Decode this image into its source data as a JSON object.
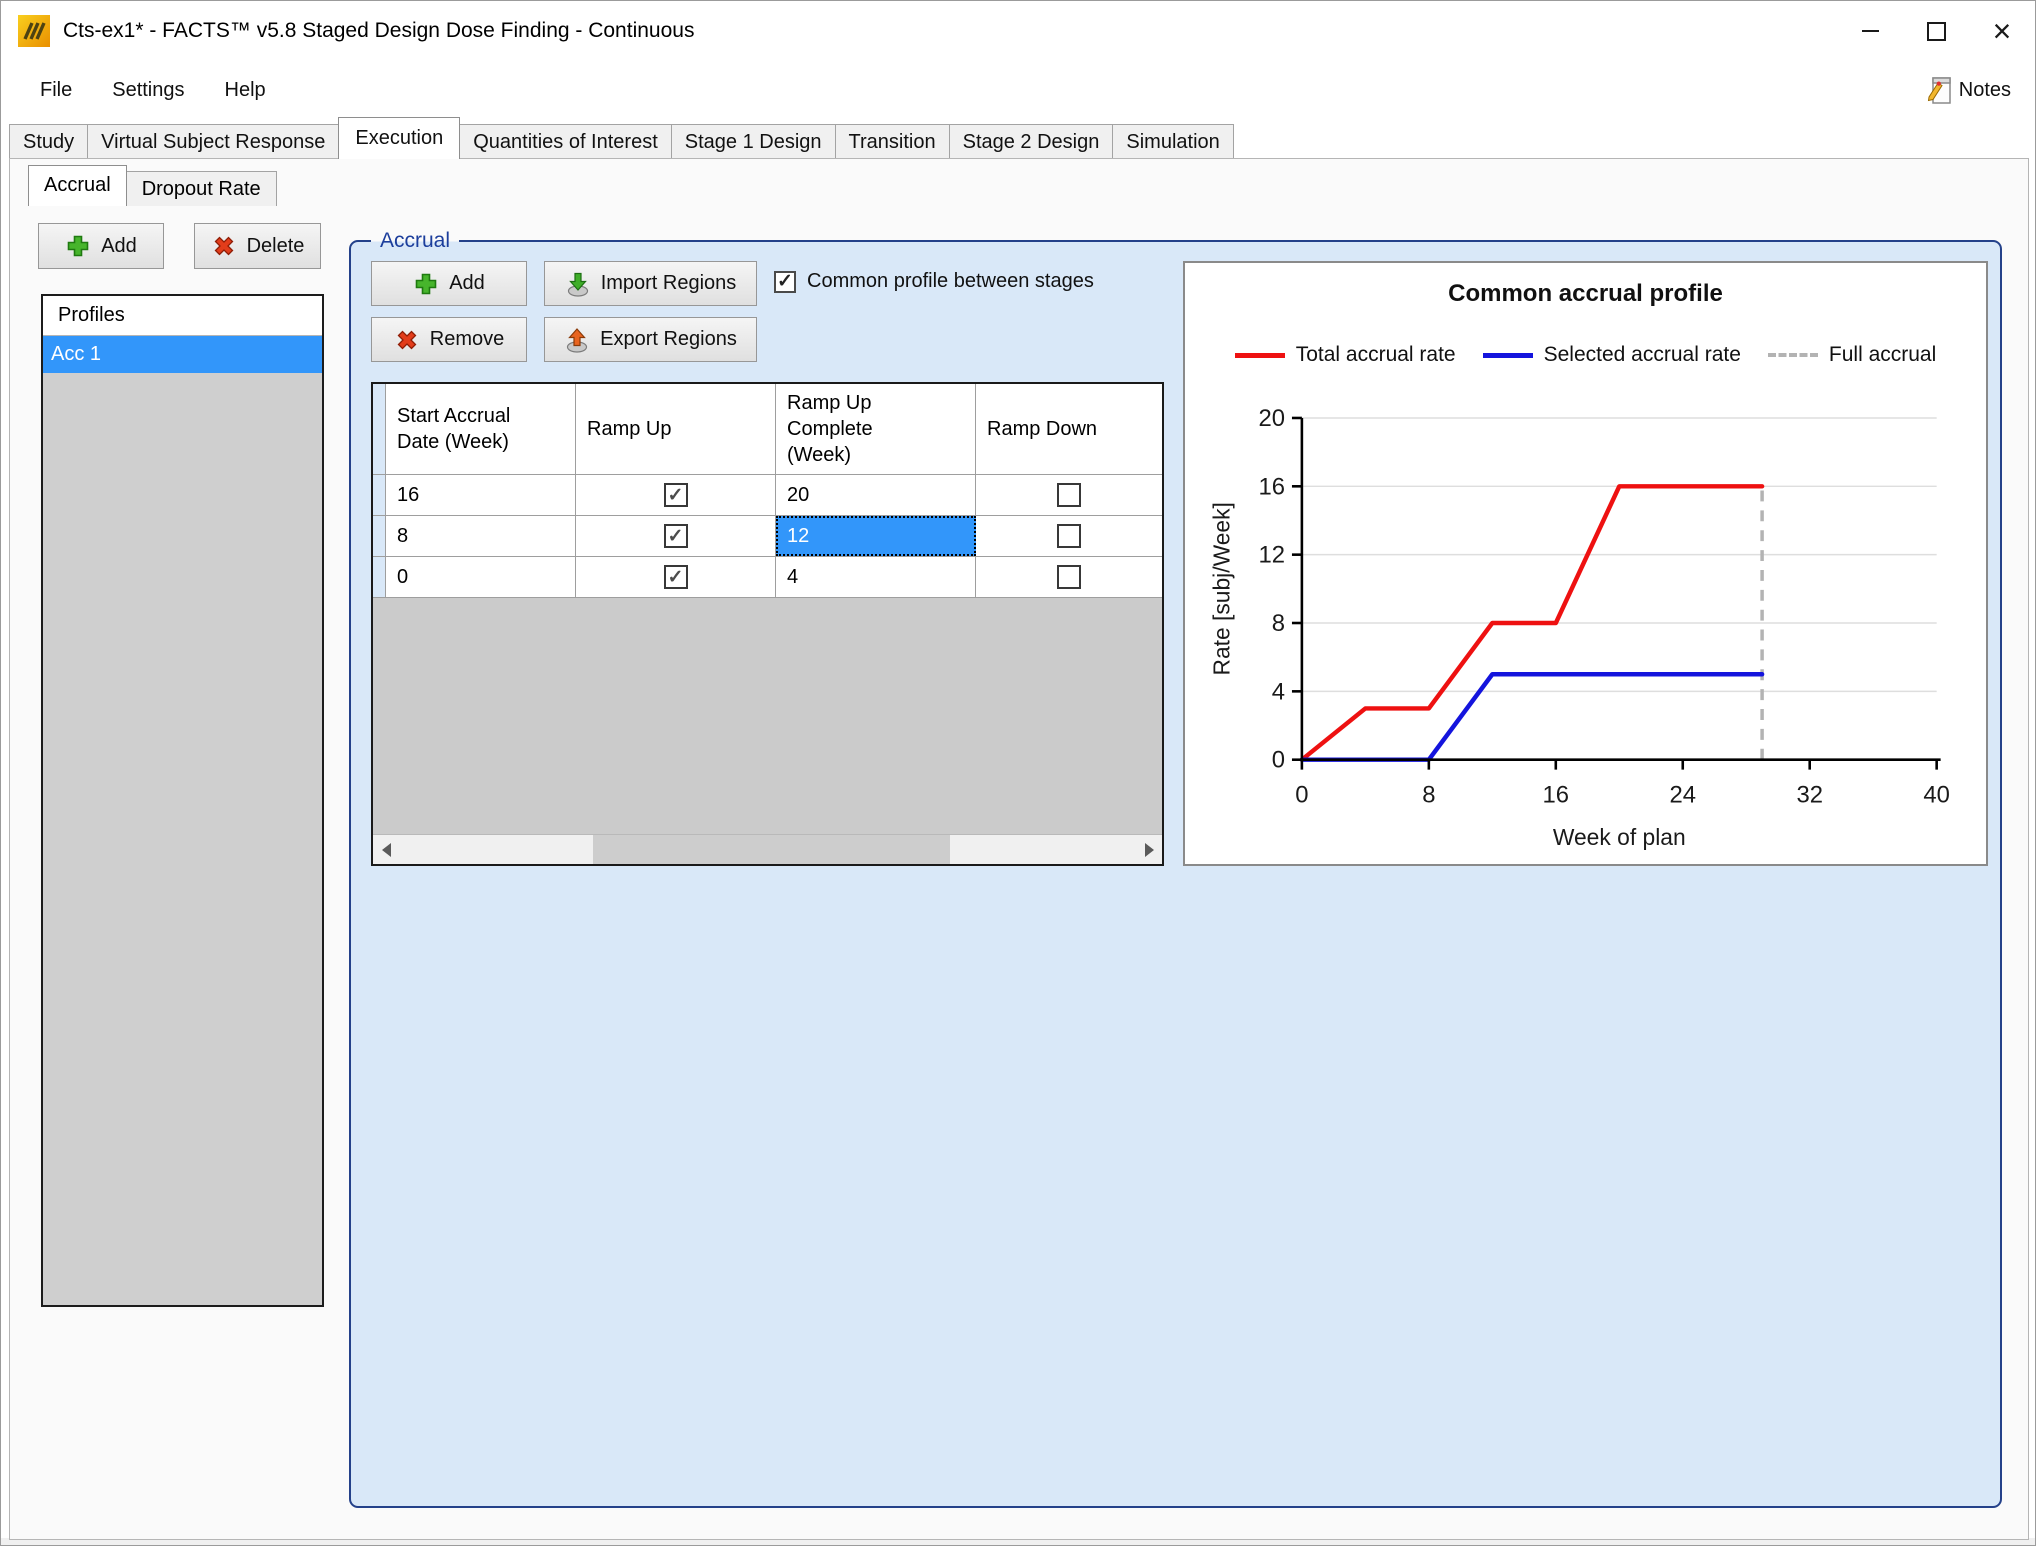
{
  "window": {
    "title": "Cts-ex1* - FACTS™ v5.8 Staged Design Dose Finding - Continuous"
  },
  "menu": {
    "items": [
      "File",
      "Settings",
      "Help"
    ],
    "notes_label": "Notes"
  },
  "tabs": {
    "items": [
      "Study",
      "Virtual Subject Response",
      "Execution",
      "Quantities of Interest",
      "Stage 1 Design",
      "Transition",
      "Stage 2 Design",
      "Simulation"
    ],
    "active": "Execution"
  },
  "subtabs": {
    "items": [
      "Accrual",
      "Dropout Rate"
    ],
    "active": "Accrual"
  },
  "profiles_panel": {
    "add_label": "Add",
    "delete_label": "Delete",
    "header": "Profiles",
    "items": [
      "Acc 1"
    ],
    "selected_index": 0
  },
  "accrual_group": {
    "label": "Accrual",
    "add_label": "Add",
    "remove_label": "Remove",
    "import_label": "Import Regions",
    "export_label": "Export Regions",
    "common_profile_label": "Common profile between stages",
    "common_profile_checked": true,
    "table": {
      "columns": [
        "Start Accrual Date (Week)",
        "Ramp Up",
        "Ramp Up Complete (Week)",
        "Ramp Down"
      ],
      "rows": [
        {
          "start": "16",
          "ramp_up": true,
          "complete": "20",
          "ramp_down": false,
          "selected_cell": null
        },
        {
          "start": "8",
          "ramp_up": true,
          "complete": "12",
          "ramp_down": false,
          "selected_cell": "complete"
        },
        {
          "start": "0",
          "ramp_up": true,
          "complete": "4",
          "ramp_down": false,
          "selected_cell": null
        }
      ]
    }
  },
  "icons": {
    "app_icon": "facts-logo-yellow-slashes",
    "notes_icon": "notepad-with-pencil",
    "add_icon": "green-plus",
    "delete_icon": "red-x",
    "remove_icon": "red-x",
    "import_icon": "green-arrow-down",
    "export_icon": "orange-arrow-up",
    "checkbox_check": "✓"
  },
  "colors": {
    "selection_blue": "#3296fa",
    "groupbox_fill": "#d9e8f8",
    "groupbox_border": "#24418a",
    "series_red": "#ee1111",
    "series_blue": "#1414dd",
    "full_accrual_gray": "#b3b3b3"
  },
  "chart_data": {
    "type": "line",
    "title": "Common accrual profile",
    "xlabel": "Week of plan",
    "ylabel": "Rate [subj/Week]",
    "xlim": [
      0,
      40
    ],
    "ylim": [
      0,
      20
    ],
    "xticks": [
      0,
      8,
      16,
      24,
      32,
      40
    ],
    "yticks": [
      0,
      4,
      8,
      12,
      16,
      20
    ],
    "grid": "horizontal",
    "legend_position": "top",
    "legend": [
      {
        "name": "Total accrual rate",
        "color": "#ee1111",
        "style": "solid"
      },
      {
        "name": "Selected accrual rate",
        "color": "#1414dd",
        "style": "solid"
      },
      {
        "name": "Full accrual",
        "color": "#b3b3b3",
        "style": "dashed"
      }
    ],
    "series": [
      {
        "name": "Total accrual rate",
        "points": [
          [
            0,
            0
          ],
          [
            4,
            3
          ],
          [
            8,
            3
          ],
          [
            12,
            8
          ],
          [
            16,
            8
          ],
          [
            20,
            16
          ],
          [
            29,
            16
          ]
        ]
      },
      {
        "name": "Selected accrual rate",
        "points": [
          [
            0,
            0
          ],
          [
            8,
            0
          ],
          [
            12,
            5
          ],
          [
            29,
            5
          ]
        ]
      }
    ],
    "full_accrual_week": 29
  }
}
